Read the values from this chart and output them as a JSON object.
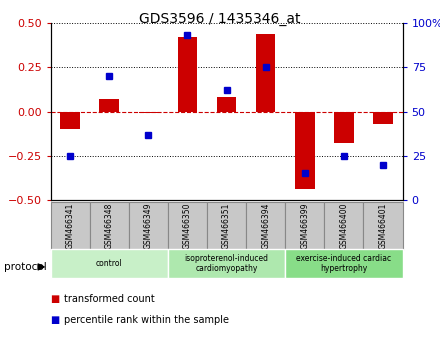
{
  "title": "GDS3596 / 1435346_at",
  "samples": [
    "GSM466341",
    "GSM466348",
    "GSM466349",
    "GSM466350",
    "GSM466351",
    "GSM466394",
    "GSM466399",
    "GSM466400",
    "GSM466401"
  ],
  "red_values": [
    -0.1,
    0.07,
    -0.01,
    0.42,
    0.08,
    0.44,
    -0.44,
    -0.18,
    -0.07
  ],
  "blue_pct": [
    25,
    70,
    37,
    93,
    62,
    75,
    15,
    25,
    20
  ],
  "red_color": "#cc0000",
  "blue_color": "#0000cc",
  "ylim": [
    -0.5,
    0.5
  ],
  "yticks_left": [
    -0.5,
    -0.25,
    0,
    0.25,
    0.5
  ],
  "yticks_right": [
    0,
    25,
    50,
    75,
    100
  ],
  "group_defs": [
    [
      0,
      2,
      "control",
      "#c8f0c8"
    ],
    [
      3,
      5,
      "isoproterenol-induced\ncardiomyopathy",
      "#aee8ae"
    ],
    [
      6,
      8,
      "exercise-induced cardiac\nhypertrophy",
      "#88dd88"
    ]
  ],
  "sample_box_color": "#c8c8c8",
  "sample_box_edge": "#888888",
  "protocol_label": "protocol",
  "legend_red": "transformed count",
  "legend_blue": "percentile rank within the sample"
}
